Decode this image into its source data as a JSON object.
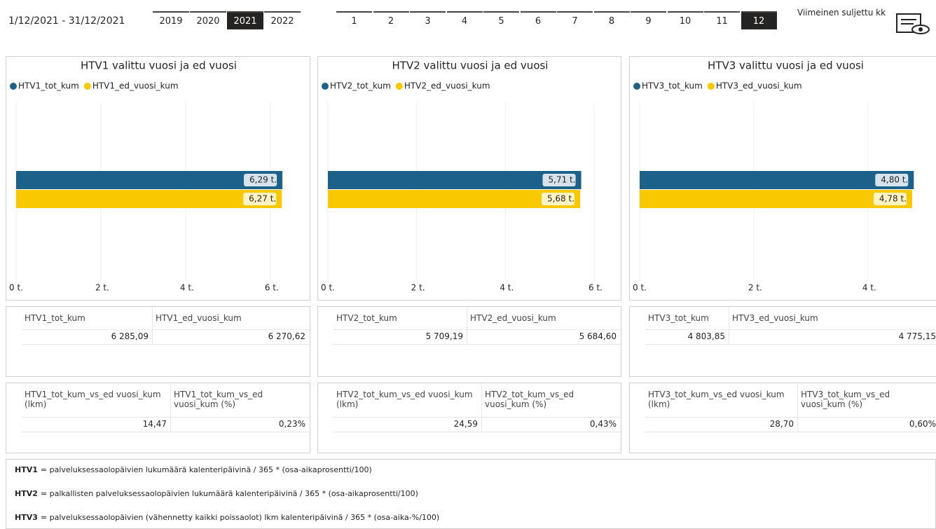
{
  "header": {
    "date_range": "1/12/2021 - 31/12/2021",
    "years": [
      "2019",
      "2020",
      "2021",
      "2022"
    ],
    "selected_year": "2021",
    "months": [
      "1",
      "2",
      "3",
      "4",
      "5",
      "6",
      "7",
      "8",
      "9",
      "10",
      "11",
      "12"
    ],
    "selected_month": "12",
    "closed_month_label": "Viimeinen suljettu kk"
  },
  "chart_data": [
    {
      "type": "bar",
      "orientation": "horizontal",
      "title": "HTV1 valittu vuosi ja ed vuosi",
      "series": [
        {
          "name": "HTV1_tot_kum",
          "color": "#1b6189",
          "values": [
            6.28509
          ],
          "value_labels": [
            "6,29 t."
          ]
        },
        {
          "name": "HTV1_ed_vuosi_kum",
          "color": "#f8c800",
          "values": [
            6.27062
          ],
          "value_labels": [
            "6,27 t."
          ]
        }
      ],
      "xlim": [
        0,
        6.3
      ],
      "xticks": [
        {
          "value": 0,
          "label": "0 t."
        },
        {
          "value": 2,
          "label": "2 t."
        },
        {
          "value": 4,
          "label": "4 t."
        },
        {
          "value": 6,
          "label": "6 t."
        }
      ],
      "grid": true
    },
    {
      "type": "bar",
      "orientation": "horizontal",
      "title": "HTV2 valittu vuosi ja ed vuosi",
      "series": [
        {
          "name": "HTV2_tot_kum",
          "color": "#1b6189",
          "values": [
            5.70919
          ],
          "value_labels": [
            "5,71 t."
          ]
        },
        {
          "name": "HTV2_ed_vuosi_kum",
          "color": "#f8c800",
          "values": [
            5.6846
          ],
          "value_labels": [
            "5,68 t."
          ]
        }
      ],
      "xlim": [
        0,
        6
      ],
      "xticks": [
        {
          "value": 0,
          "label": "0 t."
        },
        {
          "value": 2,
          "label": "2 t."
        },
        {
          "value": 4,
          "label": "4 t."
        },
        {
          "value": 6,
          "label": "6 t."
        }
      ],
      "grid": true
    },
    {
      "type": "bar",
      "orientation": "horizontal",
      "title": "HTV3 valittu vuosi ja ed vuosi",
      "series": [
        {
          "name": "HTV3_tot_kum",
          "color": "#1b6189",
          "values": [
            4.80385
          ],
          "value_labels": [
            "4,80 t."
          ]
        },
        {
          "name": "HTV3_ed_vuosi_kum",
          "color": "#f8c800",
          "values": [
            4.77515
          ],
          "value_labels": [
            "4,78 t."
          ]
        }
      ],
      "xlim": [
        0,
        4.8
      ],
      "xticks": [
        {
          "value": 0,
          "label": "0 t."
        },
        {
          "value": 2,
          "label": "2 t."
        },
        {
          "value": 4,
          "label": "4 t."
        }
      ],
      "grid": true
    }
  ],
  "tables": [
    {
      "columns": [
        "HTV1_tot_kum",
        "HTV1_ed_vuosi_kum"
      ],
      "rows": [
        [
          "6 285,09",
          "6 270,62"
        ]
      ]
    },
    {
      "columns": [
        "HTV2_tot_kum",
        "HTV2_ed_vuosi_kum"
      ],
      "rows": [
        [
          "5 709,19",
          "5 684,60"
        ]
      ]
    },
    {
      "columns": [
        "HTV3_tot_kum",
        "HTV3_ed_vuosi_kum"
      ],
      "rows": [
        [
          "4 803,85",
          "4 775,15"
        ]
      ]
    }
  ],
  "ratio_tables": [
    {
      "columns": [
        "HTV1_tot_kum_vs_ed vuosi_kum (lkm)",
        "HTV1_tot_kum_vs_ed vuosi_kum (%)"
      ],
      "rows": [
        [
          "14,47",
          "0,23%"
        ]
      ]
    },
    {
      "columns": [
        "HTV2_tot_kum_vs_ed vuosi_kum (lkm)",
        "HTV2_tot_kum_vs_ed vuosi_kum (%)"
      ],
      "rows": [
        [
          "24,59",
          "0,43%"
        ]
      ]
    },
    {
      "columns": [
        "HTV3_tot_kum_vs_ed vuosi_kum (lkm)",
        "HTV3_tot_kum_vs_ed vuosi_kum (%)"
      ],
      "rows": [
        [
          "28,70",
          "0,60%"
        ]
      ]
    }
  ],
  "definitions": [
    {
      "term": "HTV1",
      "text": "= palveluksessaolopäivien lukumäärä kalenteripäivinä / 365 * (osa-aikaprosentti/100)"
    },
    {
      "term": "HTV2",
      "text": "= palkallisten palveluksessaolopäivien lukumäärä kalenteripäivinä / 365 * (osa-aikaprosentti/100)"
    },
    {
      "term": "HTV3",
      "text": "= palveluksessaolopäivien (vähennetty kaikki poissaolot) lkm kalenteripäivinä / 365 * (osa-aika-%/100)"
    }
  ]
}
